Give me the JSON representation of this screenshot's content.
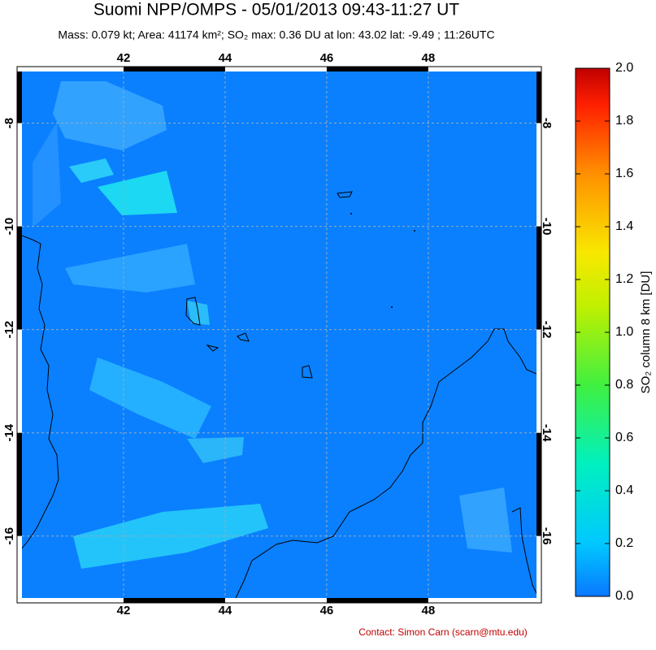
{
  "map": {
    "title": "Suomi NPP/OMPS - 05/01/2013 09:43-11:27 UT",
    "subtitle": "Mass: 0.079 kt; Area: 41174 km²; SO₂ max: 0.36 DU at lon: 43.02 lat: -9.49 ; 11:26UTC",
    "lonlim": [
      40,
      50.13
    ],
    "latlim": [
      -7,
      -17.2
    ],
    "lon_ticks": [
      42,
      44,
      46,
      48
    ],
    "lat_ticks": [
      -8,
      -10,
      -12,
      -14,
      -16
    ],
    "colorbar": {
      "label": "SO₂ column 8 km [DU]",
      "lim": [
        0,
        2
      ],
      "ticks": [
        {
          "value": 0,
          "label": "0.0"
        },
        {
          "value": 0.2,
          "label": "0.2"
        },
        {
          "value": 0.4,
          "label": "0.4"
        },
        {
          "value": 0.6,
          "label": "0.6"
        },
        {
          "value": 0.8,
          "label": "0.8"
        },
        {
          "value": 1,
          "label": "1.0"
        },
        {
          "value": 1.2,
          "label": "1.2"
        },
        {
          "value": 1.4,
          "label": "1.4"
        },
        {
          "value": 1.6,
          "label": "1.6"
        },
        {
          "value": 1.8,
          "label": "1.8"
        },
        {
          "value": 2,
          "label": "2.0"
        }
      ]
    },
    "contact": "Contact: Simon Carn (scarn@mtu.edu)"
  }
}
